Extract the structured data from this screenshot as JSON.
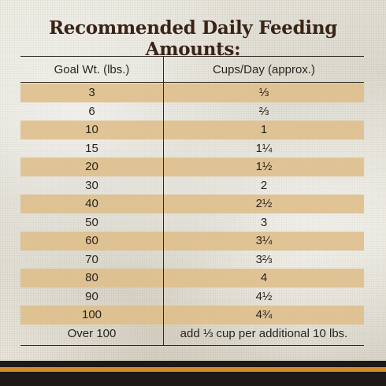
{
  "title": "Recommended Daily Feeding Amounts:",
  "table": {
    "headers": [
      "Goal Wt. (lbs.)",
      "Cups/Day (approx.)"
    ],
    "rows": [
      {
        "weight": "3",
        "cups": "⅓"
      },
      {
        "weight": "6",
        "cups": "⅔"
      },
      {
        "weight": "10",
        "cups": "1"
      },
      {
        "weight": "15",
        "cups": "1¼"
      },
      {
        "weight": "20",
        "cups": "1½"
      },
      {
        "weight": "30",
        "cups": "2"
      },
      {
        "weight": "40",
        "cups": "2½"
      },
      {
        "weight": "50",
        "cups": "3"
      },
      {
        "weight": "60",
        "cups": "3¼"
      },
      {
        "weight": "70",
        "cups": "3⅔"
      },
      {
        "weight": "80",
        "cups": "4"
      },
      {
        "weight": "90",
        "cups": "4½"
      },
      {
        "weight": "100",
        "cups": "4¾"
      },
      {
        "weight": "Over 100",
        "cups": "add ⅓ cup per additional 10 lbs."
      }
    ]
  },
  "colors": {
    "title": "#3a2417",
    "row_shade": "#debe8a",
    "rule": "#2c241e",
    "footer_dark": "#1c1916",
    "footer_accent": "#d18a28"
  }
}
